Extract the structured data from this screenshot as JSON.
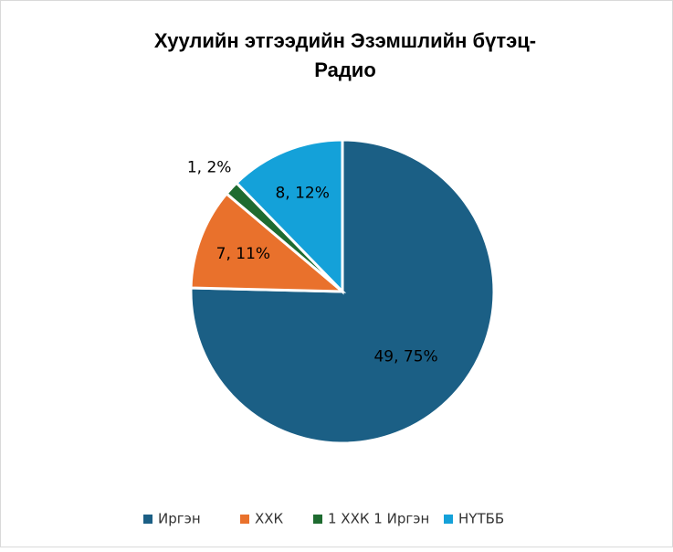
{
  "chart_data": {
    "type": "pie",
    "title": [
      "Хуулийн этгээдийн Эзэмшлийн бүтэц-",
      "Радио"
    ],
    "categories": [
      "Иргэн",
      "ХХК",
      "1 ХХК 1 Иргэн",
      "НҮТББ"
    ],
    "values": [
      49,
      7,
      1,
      8
    ],
    "value_labels": [
      "49, 75%",
      "7, 11%",
      "1, 2%",
      "8, 12%"
    ],
    "colors": [
      "#1b5f85",
      "#e9712c",
      "#1e6b30",
      "#14a1d9"
    ],
    "legend": "bottom"
  }
}
